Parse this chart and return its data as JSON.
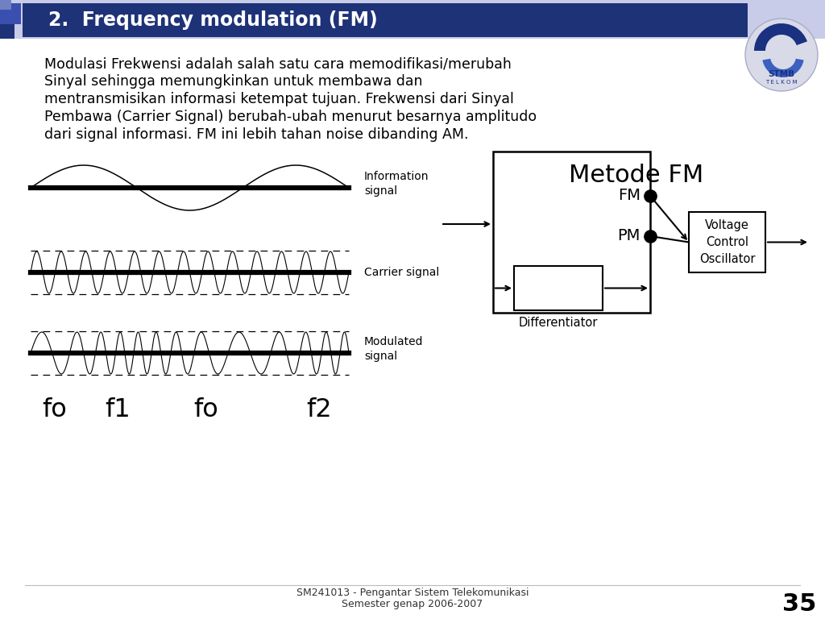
{
  "title": "2.  Frequency modulation (FM)",
  "title_bg_color_dark": "#1e3278",
  "title_bg_color_mid": "#2d4aa0",
  "title_text_color": "#ffffff",
  "body_text_color": "#000000",
  "bg_color": "#ffffff",
  "footer_text_line1": "SM241013 - Pengantar Sistem Telekomunikasi",
  "footer_text_line2": "Semester genap 2006-2007",
  "page_number": "35",
  "signal_label_0": "Information\nsignal",
  "signal_label_1": "Carrier signal",
  "signal_label_2": "Modulated\nsignal",
  "freq_labels": [
    "fo",
    "f1",
    "fo",
    "f2"
  ],
  "diagram_title": "Metode FM",
  "label_FM": "FM",
  "label_PM": "PM",
  "label_Diff": "Differentiator",
  "label_VCO": "Voltage\nControl\nOscillator",
  "body_line1": "Modulasi Frekwensi adalah salah satu cara memodifikasi/merubah",
  "body_line2": "Sinyal sehingga memungkinkan untuk membawa dan",
  "body_line3": "mentransmisikan informasi ketempat tujuan. Frekwensi dari Sinyal",
  "body_line4": "Pembawa (Carrier Signal) berubah-ubah menurut besarnya amplitudo",
  "body_line5": "dari signal informasi. FM ini lebih tahan noise dibanding AM."
}
